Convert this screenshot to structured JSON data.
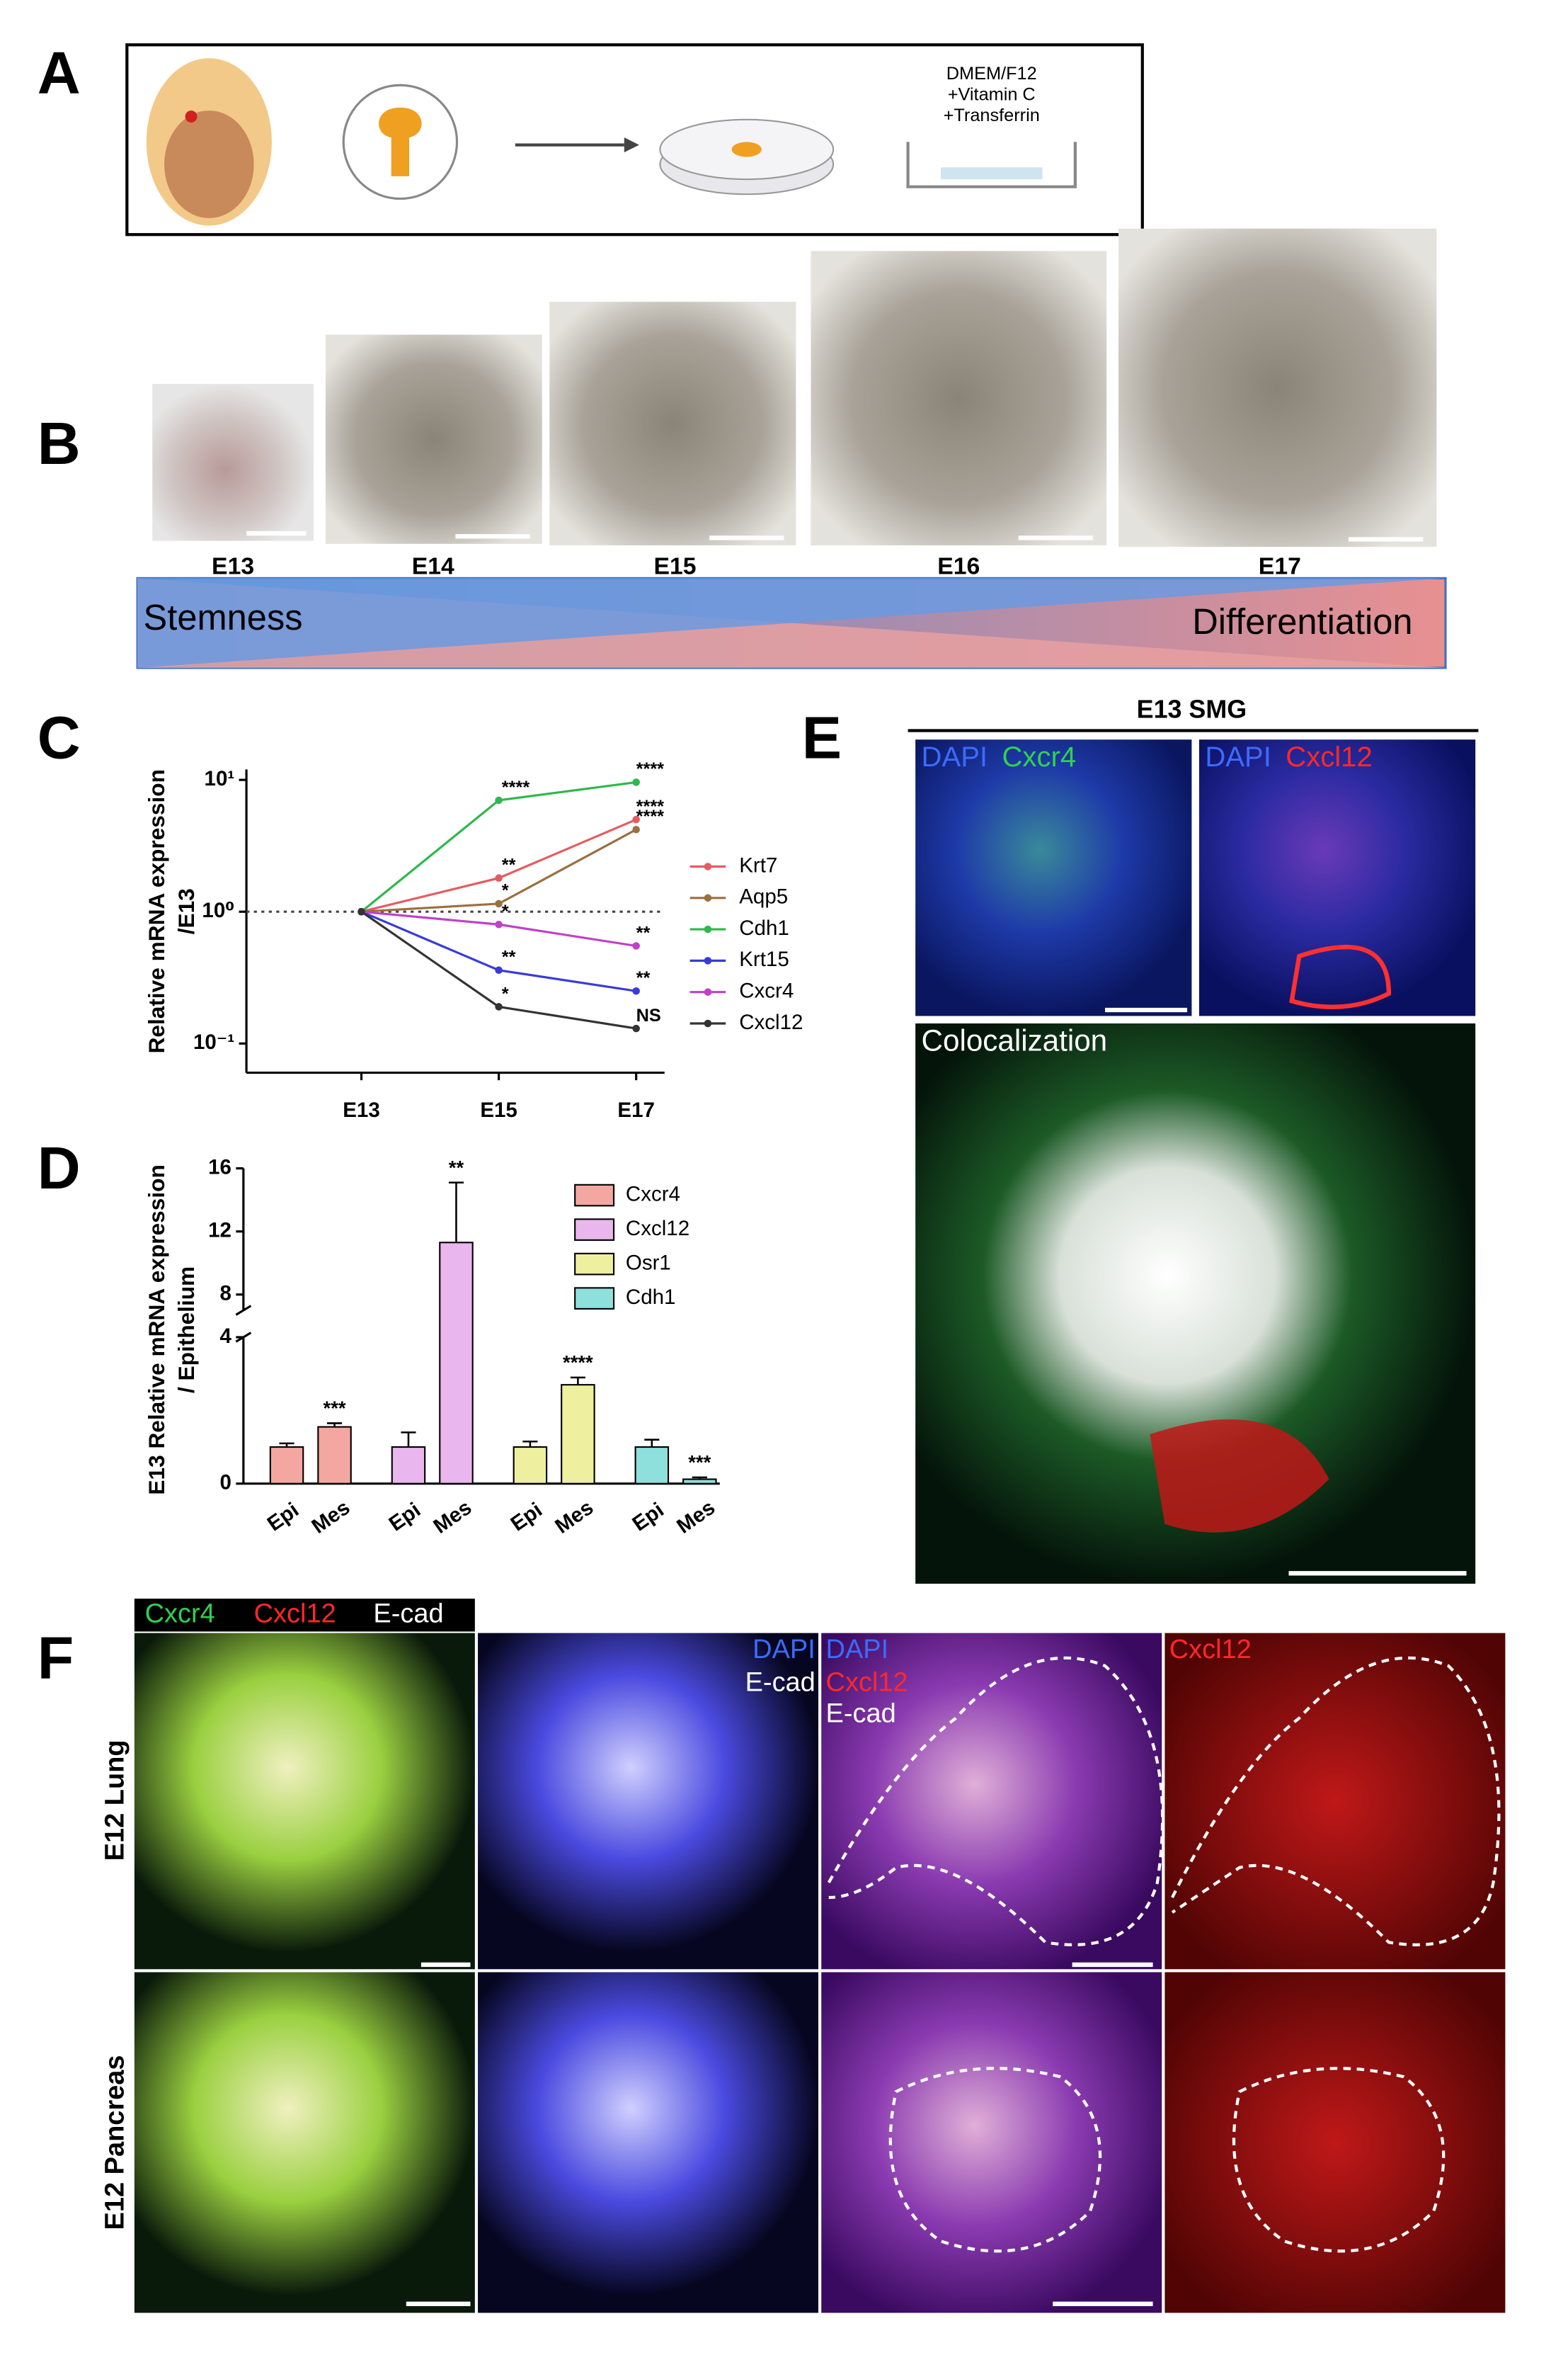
{
  "panel_labels": [
    "A",
    "B",
    "C",
    "D",
    "E",
    "F"
  ],
  "panel_a": {
    "medium": [
      "DMEM/F12",
      "+Vitamin C",
      "+Transferrin"
    ]
  },
  "panel_b": {
    "stages": [
      "E13",
      "E14",
      "E15",
      "E16",
      "E17"
    ],
    "gradient_left": "Stemness",
    "gradient_right": "Differentiation"
  },
  "chart_data": [
    {
      "type": "line",
      "y_label": [
        "Relative mRNA expression",
        "/E13"
      ],
      "categories": [
        "E13",
        "E15",
        "E17"
      ],
      "log_scale": true,
      "ylim": [
        0.06,
        12
      ],
      "yticks": [
        {
          "value": 0.1,
          "label": "10⁻¹"
        },
        {
          "value": 1,
          "label": "10⁰"
        },
        {
          "value": 10,
          "label": "10¹"
        }
      ],
      "reference_line": 1,
      "series": [
        {
          "name": "Krt7",
          "color": "#e45c60",
          "values": [
            1,
            1.8,
            5
          ],
          "annotations": [
            null,
            "**",
            "****"
          ]
        },
        {
          "name": "Aqp5",
          "color": "#9a7040",
          "values": [
            1,
            1.15,
            4.2
          ],
          "annotations": [
            null,
            "*",
            "****"
          ]
        },
        {
          "name": "Cdh1",
          "color": "#2fb84c",
          "values": [
            1,
            7,
            9.6
          ],
          "annotations": [
            null,
            "****",
            "****"
          ]
        },
        {
          "name": "Krt15",
          "color": "#3a3ad8",
          "values": [
            1,
            0.36,
            0.25
          ],
          "annotations": [
            null,
            "**",
            "**"
          ]
        },
        {
          "name": "Cxcr4",
          "color": "#c040c8",
          "values": [
            1,
            0.8,
            0.55
          ],
          "annotations": [
            null,
            "*",
            "**"
          ]
        },
        {
          "name": "Cxcl12",
          "color": "#333333",
          "values": [
            1,
            0.19,
            0.13
          ],
          "annotations": [
            null,
            "*",
            "NS"
          ]
        }
      ]
    },
    {
      "type": "bar",
      "y_label": [
        "E13 Relative mRNA expression",
        "/ Epithelium"
      ],
      "categories": [
        "Epi",
        "Mes"
      ],
      "ylim": [
        0,
        16
      ],
      "ybreak": [
        4,
        7
      ],
      "yticks": [
        0,
        4,
        8,
        12,
        16
      ],
      "series": [
        {
          "name": "Cxcr4",
          "color": "#f4a6a0",
          "values": [
            1,
            1.55
          ],
          "errors": [
            0.1,
            0.1
          ],
          "annotations": [
            null,
            "***"
          ]
        },
        {
          "name": "Cxcl12",
          "color": "#eab6ee",
          "values": [
            1,
            11.3
          ],
          "errors": [
            0.4,
            3.8
          ],
          "annotations": [
            null,
            "**"
          ]
        },
        {
          "name": "Osr1",
          "color": "#eef0a0",
          "values": [
            1,
            2.7
          ],
          "errors": [
            0.15,
            0.2
          ],
          "annotations": [
            null,
            "****"
          ]
        },
        {
          "name": "Cdh1",
          "color": "#8ee0dc",
          "values": [
            1,
            0.12
          ],
          "errors": [
            0.2,
            0.05
          ],
          "annotations": [
            null,
            "***"
          ]
        }
      ]
    }
  ],
  "panel_e": {
    "title": "E13 SMG",
    "left_stains": [
      "DAPI",
      "Cxcr4"
    ],
    "right_stains": [
      "DAPI",
      "Cxcl12"
    ],
    "bottom": "Colocalization"
  },
  "panel_f": {
    "header": [
      "Cxcr4",
      "Cxcl12",
      "E-cad"
    ],
    "rows": [
      "E12 Lung",
      "E12 Pancreas"
    ],
    "col2": [
      "DAPI",
      "E-cad"
    ],
    "col3": [
      "DAPI",
      "Cxcl12",
      "E-cad"
    ],
    "col4": [
      "Cxcl12"
    ]
  }
}
